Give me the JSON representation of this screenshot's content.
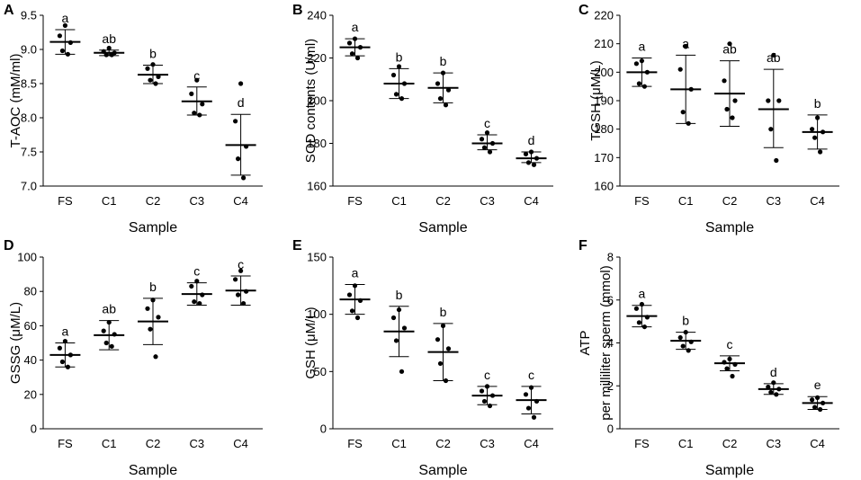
{
  "chart_data": [
    {
      "type": "scatter",
      "panel_label": "A",
      "title": "",
      "xlabel": "Sample",
      "ylabel": "T-AOC  (mM/ml)",
      "categories": [
        "FS",
        "C1",
        "C2",
        "C3",
        "C4"
      ],
      "ylim": [
        7.0,
        9.5
      ],
      "yticks": [
        "7.0",
        "7.5",
        "8.0",
        "8.5",
        "9.0",
        "9.5"
      ],
      "mean": [
        9.11,
        8.95,
        8.63,
        8.24,
        7.6
      ],
      "error_low": [
        8.93,
        8.91,
        8.5,
        8.04,
        7.16
      ],
      "error_high": [
        9.29,
        8.99,
        8.77,
        8.45,
        8.05
      ],
      "points": [
        [
          9.35,
          9.2,
          9.1,
          8.98,
          8.93
        ],
        [
          9.02,
          8.97,
          8.95,
          8.92,
          8.92
        ],
        [
          8.78,
          8.72,
          8.6,
          8.55,
          8.5
        ],
        [
          8.55,
          8.35,
          8.2,
          8.07,
          8.04
        ],
        [
          8.5,
          7.95,
          7.58,
          7.4,
          7.12
        ]
      ],
      "significance": [
        "a",
        "ab",
        "b",
        "c",
        "d"
      ]
    },
    {
      "type": "scatter",
      "panel_label": "B",
      "title": "",
      "xlabel": "Sample",
      "ylabel": "SOD contents  (U/ml)",
      "categories": [
        "FS",
        "C1",
        "C2",
        "C3",
        "C4"
      ],
      "ylim": [
        160,
        240
      ],
      "yticks": [
        "160",
        "180",
        "200",
        "220",
        "240"
      ],
      "mean": [
        225,
        208,
        206,
        180,
        173
      ],
      "error_low": [
        221,
        201,
        199,
        177,
        171
      ],
      "error_high": [
        229,
        215,
        213,
        184,
        176
      ],
      "points": [
        [
          229,
          227,
          225,
          222,
          220
        ],
        [
          216,
          212,
          208,
          203,
          201
        ],
        [
          213,
          208,
          205,
          201,
          198
        ],
        [
          185,
          182,
          180,
          178,
          176
        ],
        [
          176,
          175,
          173,
          171,
          170
        ]
      ],
      "significance": [
        "a",
        "b",
        "b",
        "c",
        "d"
      ]
    },
    {
      "type": "scatter",
      "panel_label": "C",
      "title": "",
      "xlabel": "Sample",
      "ylabel": "TGSH  (μM/L)",
      "categories": [
        "FS",
        "C1",
        "C2",
        "C3",
        "C4"
      ],
      "ylim": [
        160,
        220
      ],
      "yticks": [
        "160",
        "170",
        "180",
        "190",
        "200",
        "210",
        "220"
      ],
      "mean": [
        200,
        194,
        192.5,
        187,
        179
      ],
      "error_low": [
        195,
        182,
        181,
        173.5,
        173
      ],
      "error_high": [
        205,
        206,
        204,
        201,
        185
      ],
      "points": [
        [
          204,
          203,
          200,
          196,
          195
        ],
        [
          209,
          201,
          194,
          186,
          182
        ],
        [
          210,
          197,
          190,
          187,
          184
        ],
        [
          206,
          190,
          190,
          180,
          169
        ],
        [
          184,
          180,
          179,
          177,
          172
        ]
      ],
      "significance": [
        "a",
        "a",
        "ab",
        "ab",
        "b"
      ]
    },
    {
      "type": "scatter",
      "panel_label": "D",
      "title": "",
      "xlabel": "Sample",
      "ylabel": "GSSG  (μM/L)",
      "categories": [
        "FS",
        "C1",
        "C2",
        "C3",
        "C4"
      ],
      "ylim": [
        0,
        100
      ],
      "yticks": [
        "0",
        "20",
        "40",
        "60",
        "80",
        "100"
      ],
      "mean": [
        43,
        54.5,
        62.5,
        78.5,
        80.5
      ],
      "error_low": [
        36,
        46,
        49,
        72,
        72
      ],
      "error_high": [
        50,
        63,
        76,
        85,
        89
      ],
      "points": [
        [
          51,
          47,
          43,
          39,
          36
        ],
        [
          62,
          57,
          55,
          50,
          48
        ],
        [
          75,
          70,
          65,
          58,
          42
        ],
        [
          86,
          83,
          78,
          74,
          73
        ],
        [
          92,
          87,
          80,
          78,
          73
        ]
      ],
      "significance": [
        "a",
        "ab",
        "b",
        "c",
        "c"
      ]
    },
    {
      "type": "scatter",
      "panel_label": "E",
      "title": "",
      "xlabel": "Sample",
      "ylabel": "GSH  (μM/L)",
      "categories": [
        "FS",
        "C1",
        "C2",
        "C3",
        "C4"
      ],
      "ylim": [
        0,
        150
      ],
      "yticks": [
        "0",
        "50",
        "100",
        "150"
      ],
      "mean": [
        113,
        85,
        67,
        29,
        25
      ],
      "error_low": [
        100,
        63,
        42,
        21,
        13
      ],
      "error_high": [
        126,
        107,
        92,
        37,
        37
      ],
      "points": [
        [
          125,
          117,
          112,
          103,
          97
        ],
        [
          104,
          97,
          88,
          77,
          50
        ],
        [
          90,
          78,
          70,
          57,
          42
        ],
        [
          37,
          33,
          29,
          24,
          20
        ],
        [
          36,
          30,
          24,
          18,
          10
        ]
      ],
      "significance": [
        "a",
        "b",
        "b",
        "c",
        "c"
      ]
    },
    {
      "type": "scatter",
      "panel_label": "F",
      "title": "",
      "xlabel": "Sample",
      "ylabel": "ATP",
      "ylabel2": "per milliliter sperm (mmol)",
      "categories": [
        "FS",
        "C1",
        "C2",
        "C3",
        "C4"
      ],
      "ylim": [
        0,
        8
      ],
      "yticks": [
        "0",
        "2",
        "4",
        "6",
        "8"
      ],
      "mean": [
        5.25,
        4.1,
        3.05,
        1.85,
        1.2
      ],
      "error_low": [
        4.75,
        3.7,
        2.7,
        1.6,
        0.9
      ],
      "error_high": [
        5.75,
        4.5,
        3.4,
        2.1,
        1.5
      ],
      "points": [
        [
          5.8,
          5.6,
          5.2,
          4.95,
          4.75
        ],
        [
          4.5,
          4.25,
          4.05,
          3.85,
          3.65
        ],
        [
          3.25,
          3.1,
          3.0,
          2.8,
          2.45
        ],
        [
          2.15,
          1.95,
          1.85,
          1.7,
          1.6
        ],
        [
          1.45,
          1.35,
          1.2,
          1.0,
          0.9
        ]
      ],
      "significance": [
        "a",
        "b",
        "c",
        "d",
        "e"
      ]
    }
  ]
}
